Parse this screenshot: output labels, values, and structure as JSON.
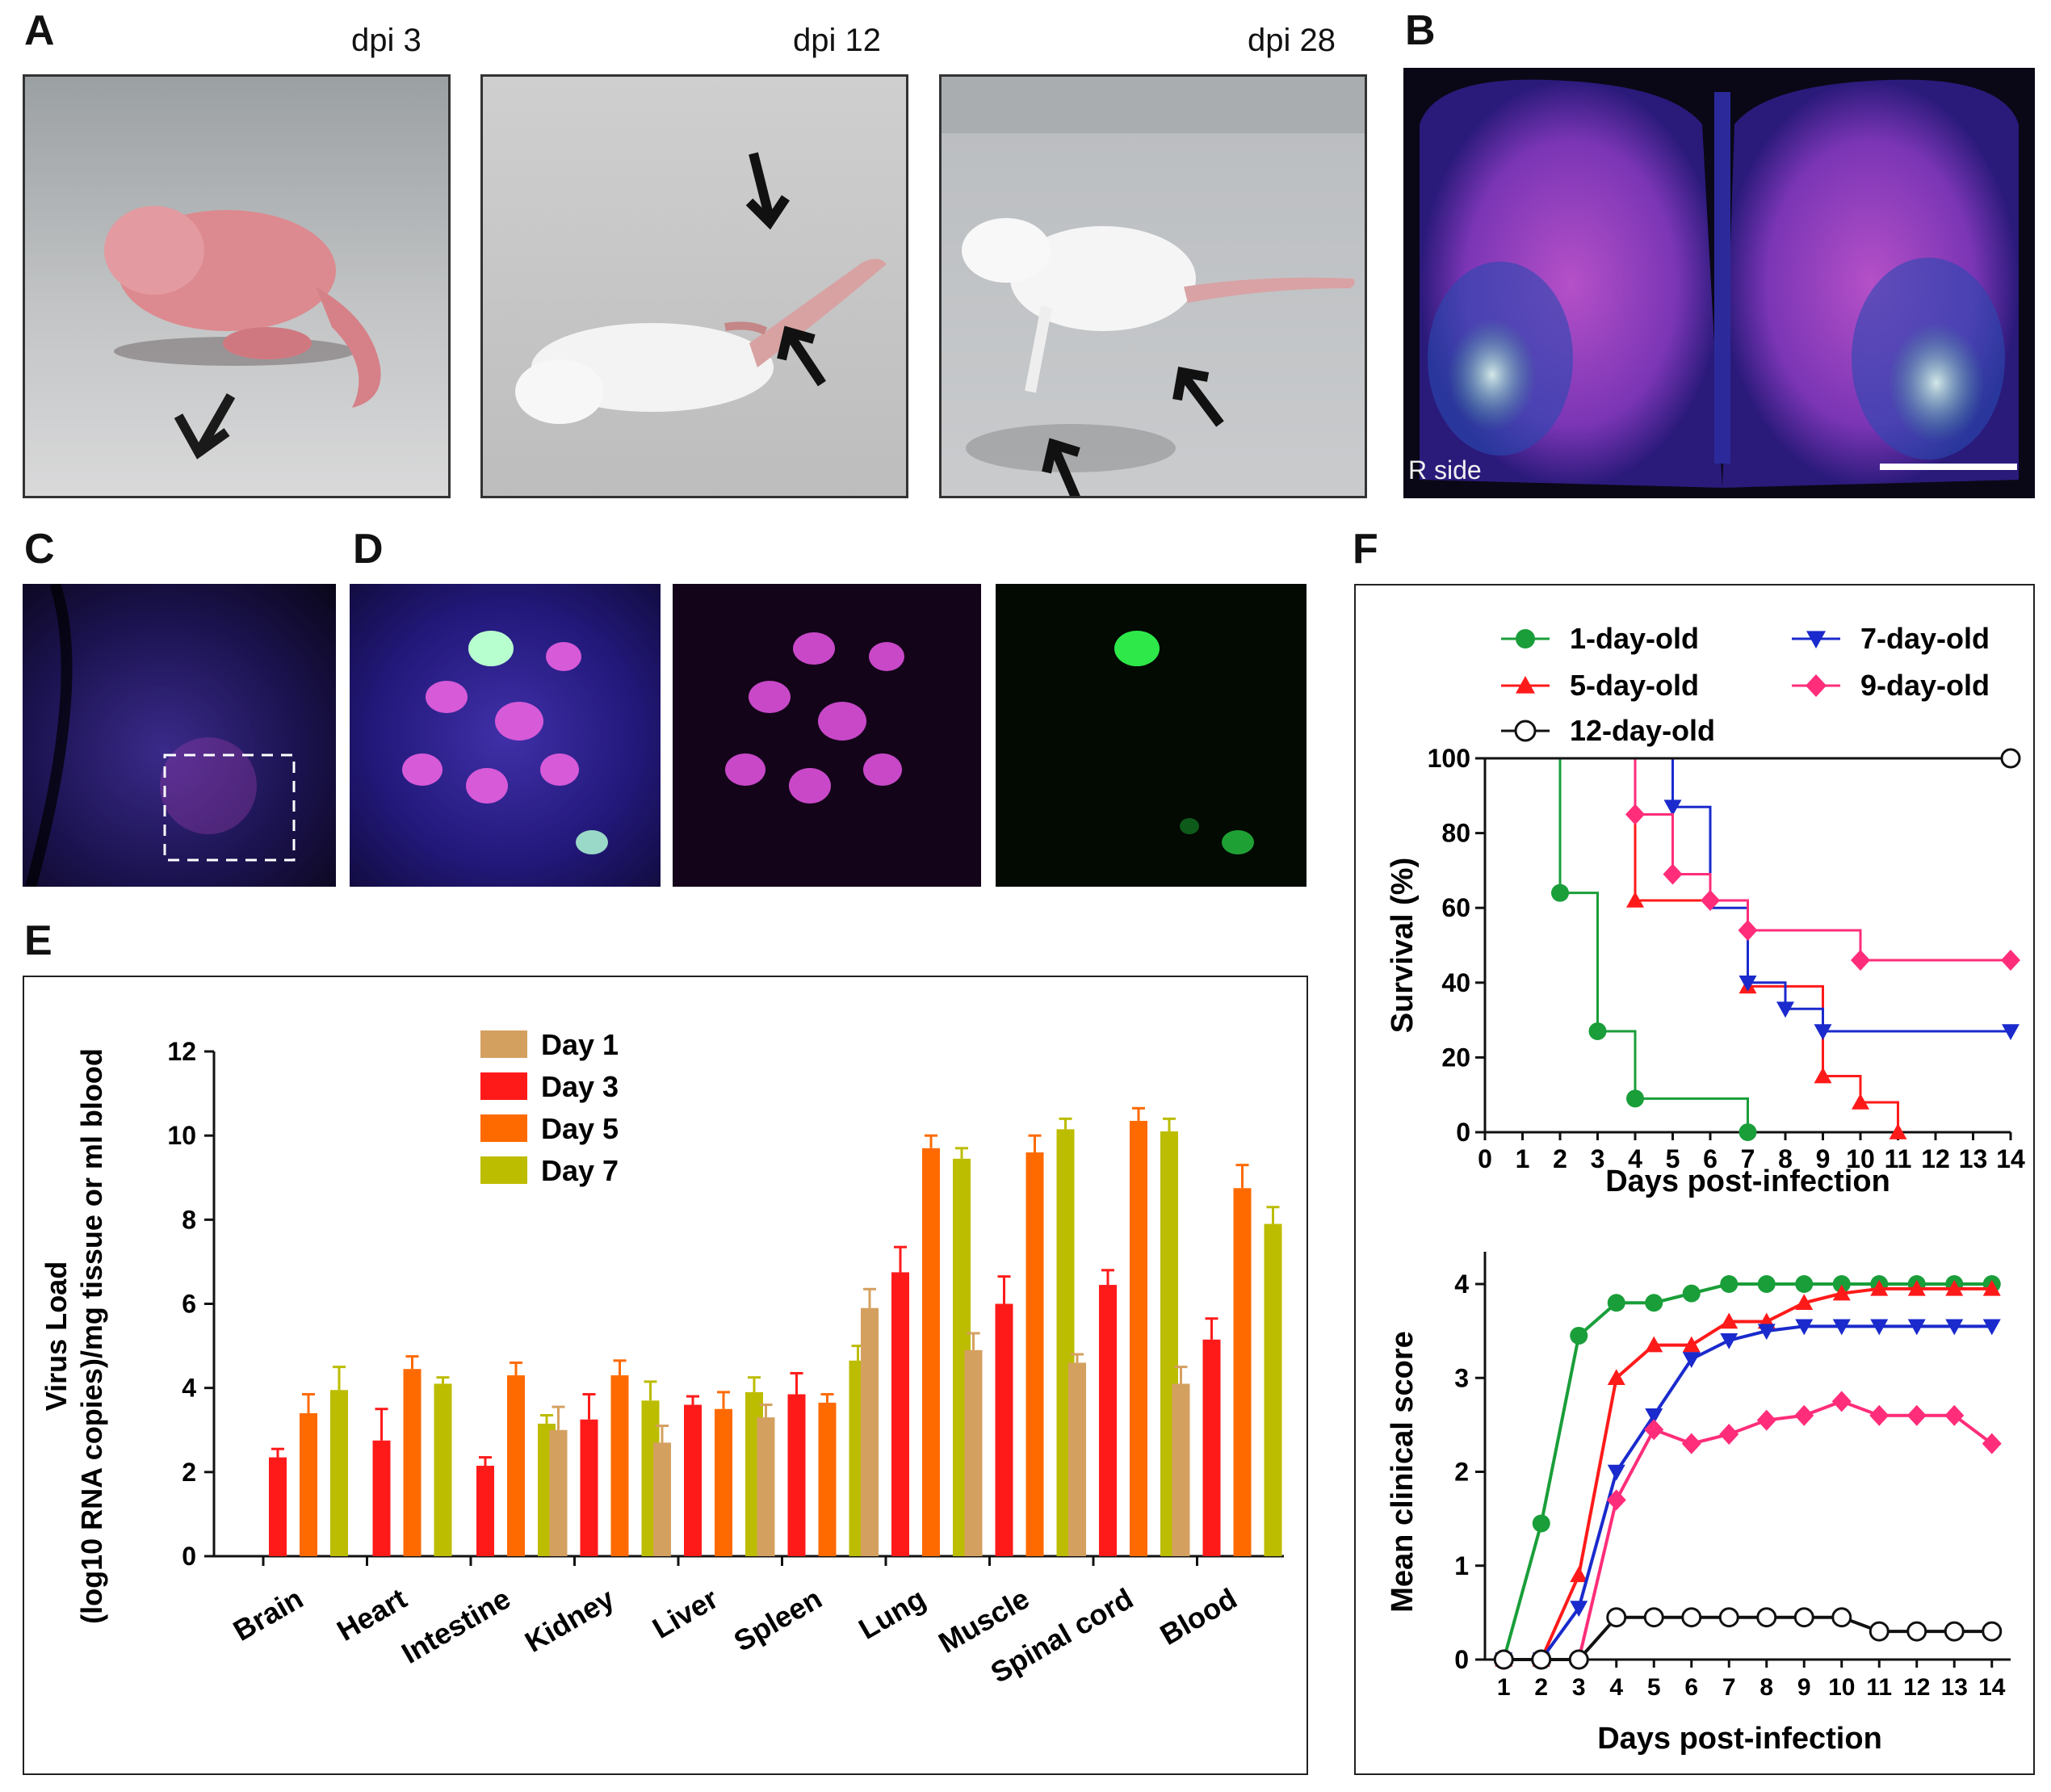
{
  "panels": {
    "A": {
      "label": "A",
      "captions": [
        "dpi 3",
        "dpi 12",
        "dpi 28"
      ]
    },
    "B": {
      "label": "B",
      "side_text": "R side"
    },
    "C": {
      "label": "C"
    },
    "D": {
      "label": "D"
    },
    "E": {
      "label": "E"
    },
    "F": {
      "label": "F"
    }
  },
  "colors": {
    "day1": "#d4a060",
    "day3": "#ff1a1a",
    "day5": "#ff6a00",
    "day7": "#bcbc00",
    "green": "#1a9e3a",
    "blue": "#1a2acc",
    "red": "#ff1a1a",
    "pink": "#ff2d7a",
    "black": "#111111"
  },
  "chart_data": [
    {
      "id": "E",
      "type": "bar",
      "title": "",
      "ylabel_line1": "Virus Load",
      "ylabel_line2": "(log10 RNA copies)/mg tissue or ml blood",
      "xlabel": "",
      "ylim": [
        0,
        12
      ],
      "yticks": [
        "0",
        "2",
        "4",
        "6",
        "8",
        "10",
        "12"
      ],
      "categories": [
        "Brain",
        "Heart",
        "Intestine",
        "Kidney",
        "Liver",
        "Spleen",
        "Lung",
        "Muscle",
        "Spinal cord",
        "Blood"
      ],
      "series": [
        {
          "name": "Day 1",
          "values": [
            null,
            null,
            null,
            3.0,
            2.7,
            3.3,
            5.9,
            4.9,
            4.6,
            4.1
          ],
          "errors": [
            null,
            null,
            null,
            0.55,
            0.4,
            0.3,
            0.45,
            0.4,
            0.2,
            0.4
          ]
        },
        {
          "name": "Day 3",
          "values": [
            2.35,
            2.75,
            2.15,
            3.25,
            3.6,
            3.85,
            6.75,
            6.0,
            6.45,
            5.15
          ],
          "errors": [
            0.2,
            0.75,
            0.2,
            0.6,
            0.2,
            0.5,
            0.6,
            0.65,
            0.35,
            0.5
          ]
        },
        {
          "name": "Day 5",
          "values": [
            3.4,
            4.45,
            4.3,
            4.3,
            3.5,
            3.65,
            9.7,
            9.6,
            10.35,
            8.75
          ],
          "errors": [
            0.45,
            0.3,
            0.3,
            0.35,
            0.4,
            0.2,
            0.3,
            0.4,
            0.3,
            0.55
          ]
        },
        {
          "name": "Day 7",
          "values": [
            3.95,
            4.1,
            3.15,
            3.7,
            3.9,
            4.65,
            9.45,
            10.15,
            10.1,
            7.9
          ],
          "errors": [
            0.55,
            0.15,
            0.2,
            0.45,
            0.35,
            0.35,
            0.25,
            0.25,
            0.3,
            0.4
          ]
        }
      ]
    },
    {
      "id": "F-survival",
      "type": "line",
      "title": "",
      "xlabel": "Days post-infection",
      "ylabel": "Survival (%)",
      "xlim": [
        0,
        14
      ],
      "ylim": [
        0,
        100
      ],
      "xticks": [
        "0",
        "1",
        "2",
        "3",
        "4",
        "5",
        "6",
        "7",
        "8",
        "9",
        "10",
        "11",
        "12",
        "13",
        "14"
      ],
      "yticks": [
        "0",
        "20",
        "40",
        "60",
        "80",
        "100"
      ],
      "series": [
        {
          "name": "1-day-old",
          "color": "green",
          "marker": "circle",
          "steps": [
            [
              0,
              100
            ],
            [
              2,
              64
            ],
            [
              3,
              27
            ],
            [
              4,
              9
            ],
            [
              7,
              0
            ]
          ],
          "markers": [
            [
              2,
              64
            ],
            [
              3,
              27
            ],
            [
              4,
              9
            ],
            [
              7,
              0
            ]
          ]
        },
        {
          "name": "5-day-old",
          "color": "red",
          "marker": "triangle-up",
          "steps": [
            [
              0,
              100
            ],
            [
              4,
              62
            ],
            [
              7,
              39
            ],
            [
              9,
              15
            ],
            [
              10,
              8
            ],
            [
              11,
              0
            ]
          ],
          "markers": [
            [
              4,
              62
            ],
            [
              7,
              39
            ],
            [
              9,
              15
            ],
            [
              10,
              8
            ],
            [
              11,
              0
            ]
          ]
        },
        {
          "name": "7-day-old",
          "color": "blue",
          "marker": "triangle-down",
          "steps": [
            [
              0,
              100
            ],
            [
              5,
              87
            ],
            [
              6,
              60
            ],
            [
              7,
              40
            ],
            [
              8,
              33
            ],
            [
              9,
              27
            ],
            [
              14,
              27
            ]
          ],
          "markers": [
            [
              5,
              87
            ],
            [
              7,
              40
            ],
            [
              8,
              33
            ],
            [
              9,
              27
            ],
            [
              14,
              27
            ]
          ]
        },
        {
          "name": "9-day-old",
          "color": "pink",
          "marker": "diamond",
          "steps": [
            [
              0,
              100
            ],
            [
              4,
              85
            ],
            [
              5,
              69
            ],
            [
              6,
              62
            ],
            [
              7,
              54
            ],
            [
              10,
              46
            ],
            [
              14,
              46
            ]
          ],
          "markers": [
            [
              4,
              85
            ],
            [
              5,
              69
            ],
            [
              6,
              62
            ],
            [
              7,
              54
            ],
            [
              10,
              46
            ],
            [
              14,
              46
            ]
          ]
        },
        {
          "name": "12-day-old",
          "color": "black",
          "marker": "open-circle",
          "steps": [
            [
              0,
              100
            ],
            [
              14,
              100
            ]
          ],
          "markers": [
            [
              14,
              100
            ]
          ]
        }
      ]
    },
    {
      "id": "F-clinical",
      "type": "line",
      "title": "",
      "xlabel": "Days post-infection",
      "ylabel": "Mean clinical score",
      "xlim": [
        0.5,
        14.5
      ],
      "ylim": [
        0,
        4
      ],
      "xticks": [
        "1",
        "2",
        "3",
        "4",
        "5",
        "6",
        "7",
        "8",
        "9",
        "10",
        "11",
        "12",
        "13",
        "14"
      ],
      "yticks": [
        "0",
        "1",
        "2",
        "3",
        "4"
      ],
      "series": [
        {
          "name": "1-day-old",
          "color": "green",
          "marker": "circle",
          "x": [
            1,
            2,
            3,
            4,
            5,
            6,
            7,
            8,
            9,
            10,
            11,
            12,
            13,
            14
          ],
          "y": [
            0,
            1.45,
            3.45,
            3.8,
            3.8,
            3.9,
            4,
            4,
            4,
            4,
            4,
            4,
            4,
            4
          ]
        },
        {
          "name": "5-day-old",
          "color": "red",
          "marker": "triangle-up",
          "x": [
            1,
            2,
            3,
            4,
            5,
            6,
            7,
            8,
            9,
            10,
            11,
            12,
            13,
            14
          ],
          "y": [
            0,
            0,
            0.9,
            3.0,
            3.35,
            3.35,
            3.6,
            3.6,
            3.8,
            3.9,
            3.95,
            3.95,
            3.95,
            3.95
          ]
        },
        {
          "name": "7-day-old",
          "color": "blue",
          "marker": "triangle-down",
          "x": [
            1,
            2,
            3,
            4,
            5,
            6,
            7,
            8,
            9,
            10,
            11,
            12,
            13,
            14
          ],
          "y": [
            0,
            0,
            0.55,
            2.0,
            2.6,
            3.2,
            3.4,
            3.5,
            3.55,
            3.55,
            3.55,
            3.55,
            3.55,
            3.55
          ]
        },
        {
          "name": "9-day-old",
          "color": "pink",
          "marker": "diamond",
          "x": [
            1,
            2,
            3,
            4,
            5,
            6,
            7,
            8,
            9,
            10,
            11,
            12,
            13,
            14
          ],
          "y": [
            0,
            0,
            0,
            1.7,
            2.45,
            2.3,
            2.4,
            2.55,
            2.6,
            2.75,
            2.6,
            2.6,
            2.6,
            2.3
          ]
        },
        {
          "name": "12-day-old",
          "color": "black",
          "marker": "open-circle",
          "x": [
            1,
            2,
            3,
            4,
            5,
            6,
            7,
            8,
            9,
            10,
            11,
            12,
            13,
            14
          ],
          "y": [
            0,
            0,
            0,
            0.45,
            0.45,
            0.45,
            0.45,
            0.45,
            0.45,
            0.45,
            0.3,
            0.3,
            0.3,
            0.3
          ]
        }
      ]
    }
  ]
}
